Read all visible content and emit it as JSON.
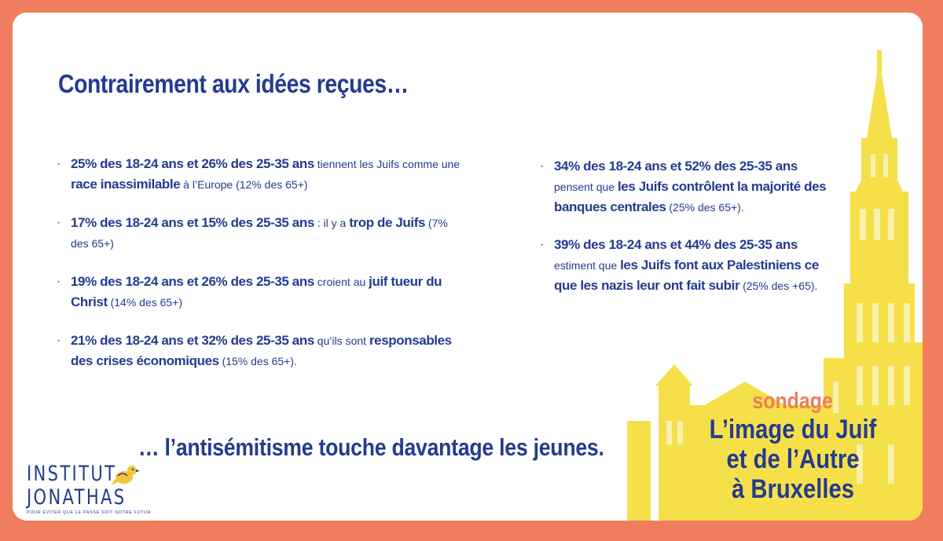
{
  "title": "Contrairement aux idées reçues…",
  "left_items": [
    [
      {
        "t": "25% des 18-24 ans et 26% des 25-35 ans",
        "b": true
      },
      {
        "t": " tiennent les Juifs comme une ",
        "b": false
      },
      {
        "t": "race inassimilable",
        "b": true
      },
      {
        "t": " à l’Europe (12% des 65+)",
        "b": false
      }
    ],
    [
      {
        "t": "17% des 18-24 ans et 15% des 25-35 ans",
        "b": true
      },
      {
        "t": " : il y a ",
        "b": false
      },
      {
        "t": "trop de Juifs",
        "b": true
      },
      {
        "t": " (7% des 65+)",
        "b": false
      }
    ],
    [
      {
        "t": "19% des 18-24 ans et 26% des 25-35 ans",
        "b": true
      },
      {
        "t": " croient au ",
        "b": false
      },
      {
        "t": "juif tueur du Christ",
        "b": true
      },
      {
        "t": " (14% des 65+)",
        "b": false
      }
    ],
    [
      {
        "t": "21% des 18-24 ans et 32% des 25-35 ans",
        "b": true
      },
      {
        "t": " qu’ils sont ",
        "b": false
      },
      {
        "t": "responsables des crises économiques",
        "b": true
      },
      {
        "t": " (15% des 65+).",
        "b": false
      }
    ]
  ],
  "right_items": [
    [
      {
        "t": "34% des 18-24 ans et 52% des 25-35 ans",
        "b": true
      },
      {
        "t": " pensent que ",
        "b": false
      },
      {
        "t": "les Juifs contrôlent la majorité des banques centrales",
        "b": true
      },
      {
        "t": " (25% des 65+).",
        "b": false
      }
    ],
    [
      {
        "t": "39% des 18-24 ans et 44% des 25-35 ans",
        "b": true
      },
      {
        "t": " estiment que ",
        "b": false
      },
      {
        "t": "les Juifs font aux Palestiniens ce que les nazis leur ont fait subir",
        "b": true
      },
      {
        "t": " (25% des +65).",
        "b": false
      }
    ]
  ],
  "conclusion": "… l’antisémitisme touche davantage les jeunes.",
  "logo": {
    "line1": "INSTITUT",
    "line2": "JONATHAS",
    "tagline": "POUR ÉVITER QUE LE PASSÉ SOIT NOTRE FUTUR"
  },
  "sondage": {
    "label": "sondage",
    "title_lines": [
      "L’image du Juif",
      "et de l’Autre",
      "à Bruxelles"
    ]
  },
  "colors": {
    "frame": "#ef7d5e",
    "text": "#243b8f",
    "accent": "#ef7d5e",
    "building": "#f6e04a",
    "bird": "#f2c53d"
  }
}
